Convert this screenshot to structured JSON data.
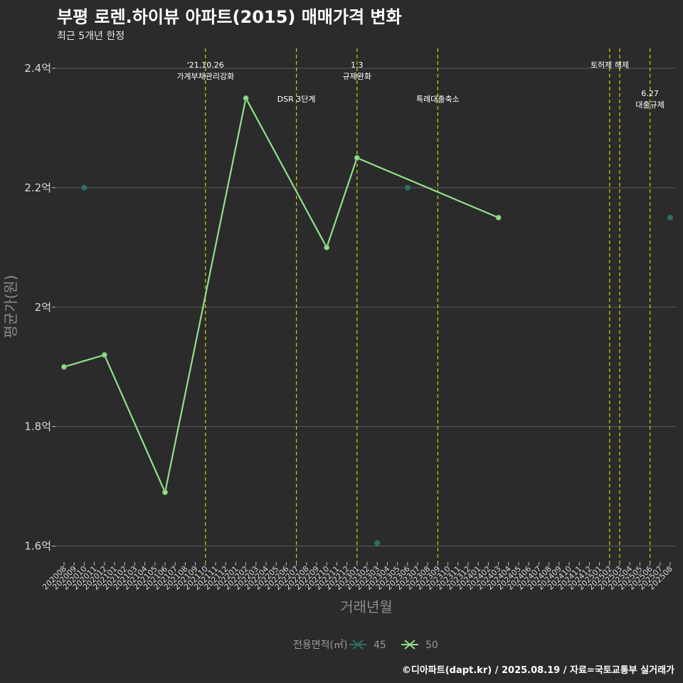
{
  "header": {
    "title": "부평 로렌.하이뷰 아파트(2015) 매매가격 변화",
    "subtitle": "최근 5개년 한정"
  },
  "caption": "©디아파트(dapt.kr) / 2025.08.19 / 자료=국토교통부 실거래가",
  "colors": {
    "background": "#2b2b2b",
    "grid": "#5a5a5a",
    "series45": "#2e6f68",
    "series50": "#90e08a",
    "vline": "#d4d400"
  },
  "chart_data": {
    "type": "line",
    "title": "부평 로렌.하이뷰 아파트(2015) 매매가격 변화",
    "subtitle": "최근 5개년 한정",
    "xlabel": "거래년월",
    "ylabel": "평균가(원)",
    "ylim": [
      1.58,
      2.44
    ],
    "yticks": [
      {
        "value": 1.6,
        "label": "1.6억"
      },
      {
        "value": 1.8,
        "label": "1.8억"
      },
      {
        "value": 2.0,
        "label": "2억"
      },
      {
        "value": 2.2,
        "label": "2.2억"
      },
      {
        "value": 2.4,
        "label": "2.4억"
      }
    ],
    "categories": [
      "202008",
      "202009",
      "202010",
      "202011",
      "202012",
      "202101",
      "202102",
      "202103",
      "202104",
      "202105",
      "202106",
      "202107",
      "202108",
      "202109",
      "202110",
      "202111",
      "202112",
      "202201",
      "202202",
      "202203",
      "202204",
      "202205",
      "202206",
      "202207",
      "202208",
      "202209",
      "202210",
      "202211",
      "202212",
      "202301",
      "202302",
      "202303",
      "202304",
      "202305",
      "202306",
      "202307",
      "202308",
      "202309",
      "202310",
      "202311",
      "202312",
      "202401",
      "202402",
      "202403",
      "202404",
      "202405",
      "202406",
      "202407",
      "202408",
      "202409",
      "202410",
      "202411",
      "202412",
      "202501",
      "202502",
      "202503",
      "202504",
      "202505",
      "202506",
      "202507",
      "202508"
    ],
    "series": [
      {
        "name": "45",
        "style": "points",
        "points": [
          {
            "x": "202010",
            "y": 2.2
          },
          {
            "x": "202303",
            "y": 1.605
          },
          {
            "x": "202306",
            "y": 2.2
          },
          {
            "x": "202508",
            "y": 2.15
          }
        ]
      },
      {
        "name": "50",
        "style": "line",
        "points": [
          {
            "x": "202008",
            "y": 1.9
          },
          {
            "x": "202012",
            "y": 1.92
          },
          {
            "x": "202106",
            "y": 1.69
          },
          {
            "x": "202202",
            "y": 2.35
          },
          {
            "x": "202210",
            "y": 2.1
          },
          {
            "x": "202301",
            "y": 2.25
          },
          {
            "x": "202403",
            "y": 2.15
          }
        ]
      }
    ],
    "annotations": [
      {
        "x": "202110",
        "lines": [
          "'21.10.26",
          "가계부채관리강화"
        ],
        "row": 0
      },
      {
        "x": "202207",
        "lines": [
          "DSR 3단계"
        ],
        "row": 1
      },
      {
        "x": "202301",
        "lines": [
          "1.3",
          "규제완화"
        ],
        "row": 0
      },
      {
        "x": "202309",
        "lines": [
          "특례대출축소"
        ],
        "row": 1
      },
      {
        "x": "202502",
        "lines": [],
        "row": 0
      },
      {
        "x": "202503",
        "lines": [
          "토허제 해제"
        ],
        "row": 0
      },
      {
        "x": "202506",
        "lines": [
          "6.27",
          "대출규제"
        ],
        "row": 2
      }
    ],
    "legend": {
      "title": "전용면적(㎡)",
      "position": "bottom",
      "items": [
        "45",
        "50"
      ]
    }
  }
}
